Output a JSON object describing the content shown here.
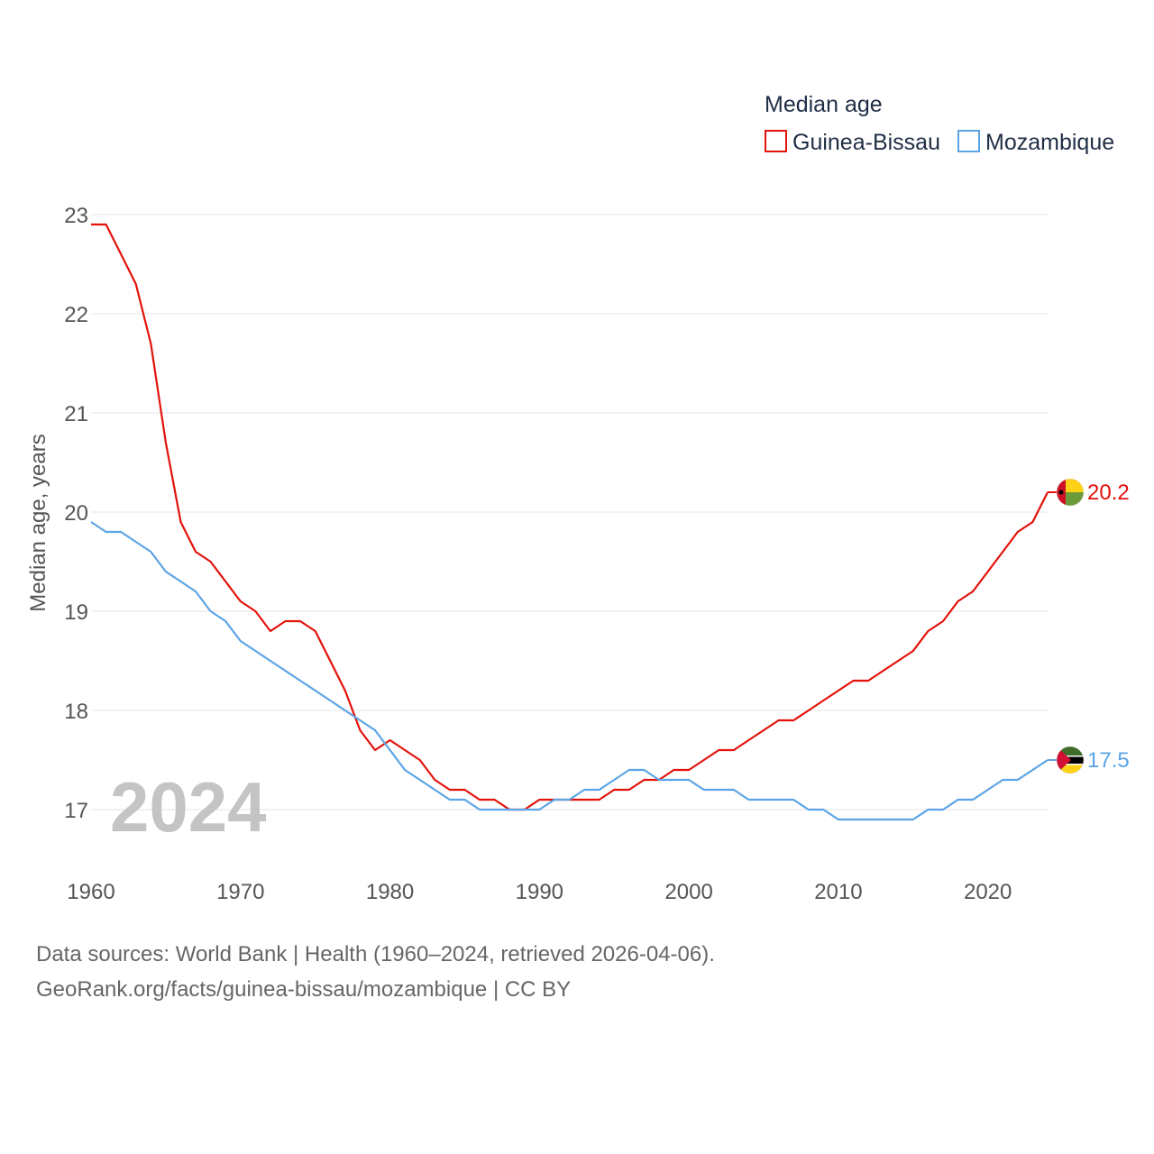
{
  "chart_data": {
    "type": "line",
    "title": "Median age",
    "xlabel": "",
    "ylabel": "Median age, years",
    "xlim": [
      1960,
      2024
    ],
    "ylim": [
      16.5,
      23.2
    ],
    "x_ticks": [
      1960,
      1970,
      1980,
      1990,
      2000,
      2010,
      2020
    ],
    "y_ticks": [
      17,
      18,
      19,
      20,
      21,
      22,
      23
    ],
    "grid": true,
    "legend_position": "top-right",
    "year_label": "2024",
    "x": [
      1960,
      1961,
      1962,
      1963,
      1964,
      1965,
      1966,
      1967,
      1968,
      1969,
      1970,
      1971,
      1972,
      1973,
      1974,
      1975,
      1976,
      1977,
      1978,
      1979,
      1980,
      1981,
      1982,
      1983,
      1984,
      1985,
      1986,
      1987,
      1988,
      1989,
      1990,
      1991,
      1992,
      1993,
      1994,
      1995,
      1996,
      1997,
      1998,
      1999,
      2000,
      2001,
      2002,
      2003,
      2004,
      2005,
      2006,
      2007,
      2008,
      2009,
      2010,
      2011,
      2012,
      2013,
      2014,
      2015,
      2016,
      2017,
      2018,
      2019,
      2020,
      2021,
      2022,
      2023,
      2024
    ],
    "series": [
      {
        "name": "Guinea-Bissau",
        "color": "#e3120b",
        "end_label": "20.2",
        "values": [
          22.9,
          22.9,
          22.6,
          22.3,
          21.7,
          20.7,
          19.9,
          19.6,
          19.5,
          19.3,
          19.1,
          19.0,
          18.8,
          18.9,
          18.9,
          18.8,
          18.5,
          18.2,
          17.8,
          17.6,
          17.7,
          17.6,
          17.5,
          17.3,
          17.2,
          17.2,
          17.1,
          17.1,
          17.0,
          17.0,
          17.1,
          17.1,
          17.1,
          17.1,
          17.1,
          17.2,
          17.2,
          17.3,
          17.3,
          17.4,
          17.4,
          17.5,
          17.6,
          17.6,
          17.7,
          17.8,
          17.9,
          17.9,
          18.0,
          18.1,
          18.2,
          18.3,
          18.3,
          18.4,
          18.5,
          18.6,
          18.8,
          18.9,
          19.1,
          19.2,
          19.4,
          19.6,
          19.8,
          19.9,
          20.2
        ]
      },
      {
        "name": "Mozambique",
        "color": "#5ba4e5",
        "end_label": "17.5",
        "values": [
          19.9,
          19.8,
          19.8,
          19.7,
          19.6,
          19.4,
          19.3,
          19.2,
          19.0,
          18.9,
          18.7,
          18.6,
          18.5,
          18.4,
          18.3,
          18.2,
          18.1,
          18.0,
          17.9,
          17.8,
          17.6,
          17.4,
          17.3,
          17.2,
          17.1,
          17.1,
          17.0,
          17.0,
          17.0,
          17.0,
          17.0,
          17.1,
          17.1,
          17.2,
          17.2,
          17.3,
          17.4,
          17.4,
          17.3,
          17.3,
          17.3,
          17.2,
          17.2,
          17.2,
          17.1,
          17.1,
          17.1,
          17.1,
          17.0,
          17.0,
          16.9,
          16.9,
          16.9,
          16.9,
          16.9,
          16.9,
          17.0,
          17.0,
          17.1,
          17.1,
          17.2,
          17.3,
          17.3,
          17.4,
          17.5
        ]
      }
    ]
  },
  "footer": {
    "source": "Data sources: World Bank | Health (1960–2024, retrieved 2026-04-06).",
    "link": "GeoRank.org/facts/guinea-bissau/mozambique | CC BY"
  },
  "flags": {
    "guinea_bissau": {
      "name": "guinea-bissau-flag-icon",
      "colors": [
        "#ce1126",
        "#fcd116",
        "#6a9a3a",
        "#000000"
      ]
    },
    "mozambique": {
      "name": "mozambique-flag-icon",
      "colors": [
        "#3d6b2a",
        "#000000",
        "#fcd116",
        "#d21034",
        "#ffffff"
      ]
    }
  }
}
